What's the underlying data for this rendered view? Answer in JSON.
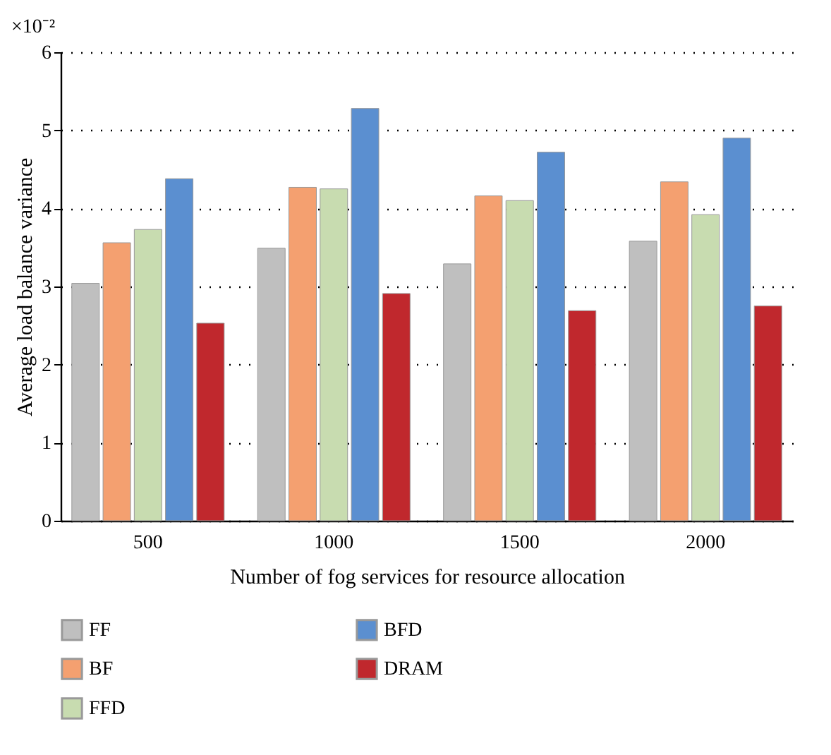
{
  "chart_data": {
    "type": "bar",
    "xlabel": "Number of fog services for resource allocation",
    "ylabel": "Average load balance variance",
    "annotations": [
      "×10⁻²"
    ],
    "categories": [
      "500",
      "1000",
      "1500",
      "2000"
    ],
    "series": [
      {
        "name": "FF",
        "color": "#bfbfbf",
        "values": [
          3.04,
          3.49,
          3.29,
          3.58
        ]
      },
      {
        "name": "BF",
        "color": "#f4a070",
        "values": [
          3.56,
          4.27,
          4.16,
          4.34
        ]
      },
      {
        "name": "FFD",
        "color": "#c8dcb0",
        "values": [
          3.73,
          4.25,
          4.1,
          3.92
        ]
      },
      {
        "name": "BFD",
        "color": "#5b8fd0",
        "values": [
          4.38,
          5.28,
          4.72,
          4.9
        ]
      },
      {
        "name": "DRAM",
        "color": "#c0282d",
        "values": [
          2.53,
          2.91,
          2.69,
          2.75
        ]
      }
    ],
    "ylim": [
      0,
      6
    ],
    "yticks": [
      0,
      1,
      2,
      3,
      4,
      5,
      6
    ],
    "grid": "y",
    "legend": "bottom"
  }
}
